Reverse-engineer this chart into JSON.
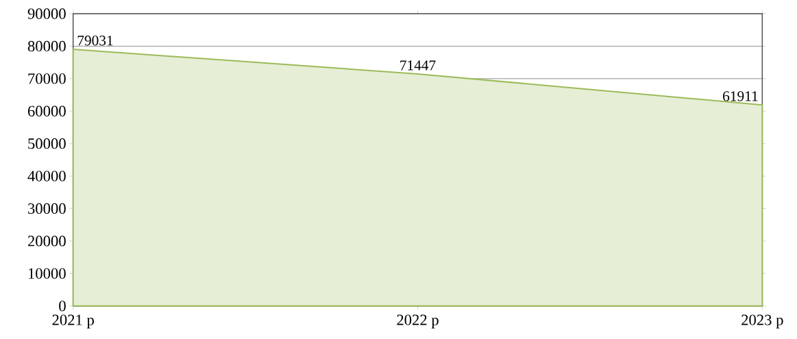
{
  "chart_data": {
    "type": "area",
    "categories": [
      "2021 р",
      "2022 р",
      "2023 р"
    ],
    "values": [
      79031,
      71447,
      61911
    ],
    "color": "#9bbb59",
    "ylim": [
      0,
      90000
    ],
    "yticks": [
      0,
      10000,
      20000,
      30000,
      40000,
      50000,
      60000,
      70000,
      80000,
      90000
    ],
    "grid": "y",
    "data_labels": true
  }
}
